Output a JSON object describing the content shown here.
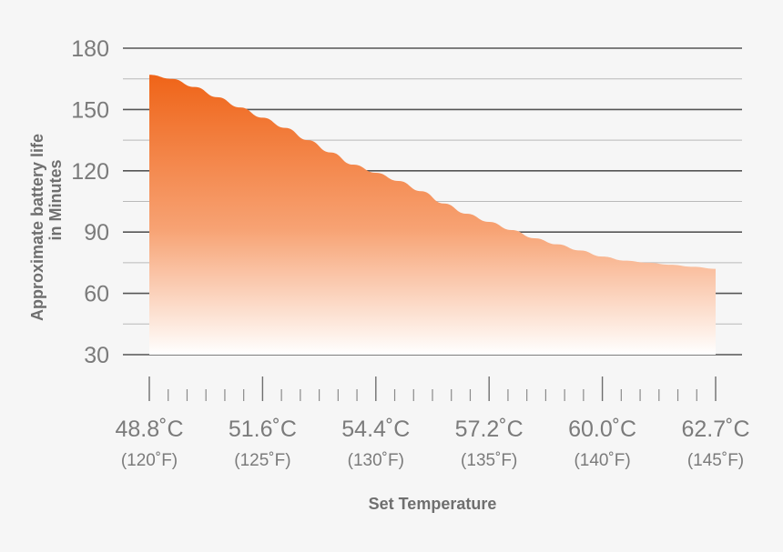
{
  "chart_data": {
    "type": "area",
    "ylabel_line1": "Approximate battery life",
    "ylabel_line2": "in Minutes",
    "xlabel": "Set Temperature",
    "ylim": [
      30,
      180
    ],
    "yticks": [
      180,
      150,
      120,
      90,
      60,
      30
    ],
    "xticks": [
      {
        "celsius": "48.8˚C",
        "fahrenheit": "(120˚F)"
      },
      {
        "celsius": "51.6˚C",
        "fahrenheit": "(125˚F)"
      },
      {
        "celsius": "54.4˚C",
        "fahrenheit": "(130˚F)"
      },
      {
        "celsius": "57.2˚C",
        "fahrenheit": "(135˚F)"
      },
      {
        "celsius": "60.0˚C",
        "fahrenheit": "(140˚F)"
      },
      {
        "celsius": "62.7˚C",
        "fahrenheit": "(145˚F)"
      }
    ],
    "series": [
      {
        "x_f": [
          120,
          121,
          122,
          123,
          124,
          125,
          126,
          127,
          128,
          129,
          130,
          131,
          132,
          133,
          134,
          135,
          136,
          137,
          138,
          139,
          140,
          141,
          142,
          143,
          144,
          145
        ],
        "values": [
          167,
          165,
          161,
          156,
          151,
          146,
          141,
          135,
          129,
          123,
          119,
          115,
          110,
          104,
          99,
          95,
          91,
          87,
          84,
          81,
          78,
          76,
          75,
          74,
          73,
          72
        ]
      }
    ],
    "grid": true,
    "colors": {
      "fill_top": "#ef6418",
      "fill_bottom": "#ffffff",
      "grid_major": "#555555",
      "grid_minor": "#b9b9b9",
      "text": "#7b7b7b"
    }
  }
}
